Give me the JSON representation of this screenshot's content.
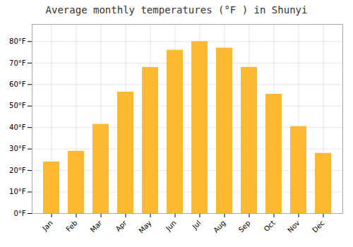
{
  "chart_data": {
    "type": "bar",
    "title": "Average monthly temperatures (°F ) in Shunyi",
    "categories": [
      "Jan",
      "Feb",
      "Mar",
      "Apr",
      "May",
      "Jun",
      "Jul",
      "Aug",
      "Sep",
      "Oct",
      "Nov",
      "Dec"
    ],
    "values": [
      24,
      29,
      41.5,
      56.5,
      68,
      76,
      80,
      77,
      68,
      55.5,
      40.5,
      28
    ],
    "color": "#FDB931",
    "ylim": [
      0,
      88
    ],
    "yticks": [
      {
        "value": 0,
        "label": "0°F"
      },
      {
        "value": 10,
        "label": "10°F"
      },
      {
        "value": 20,
        "label": "20°F"
      },
      {
        "value": 30,
        "label": "30°F"
      },
      {
        "value": 40,
        "label": "40°F"
      },
      {
        "value": 50,
        "label": "50°F"
      },
      {
        "value": 60,
        "label": "60°F"
      },
      {
        "value": 70,
        "label": "70°F"
      },
      {
        "value": 80,
        "label": "80°F"
      }
    ],
    "grid": true
  }
}
